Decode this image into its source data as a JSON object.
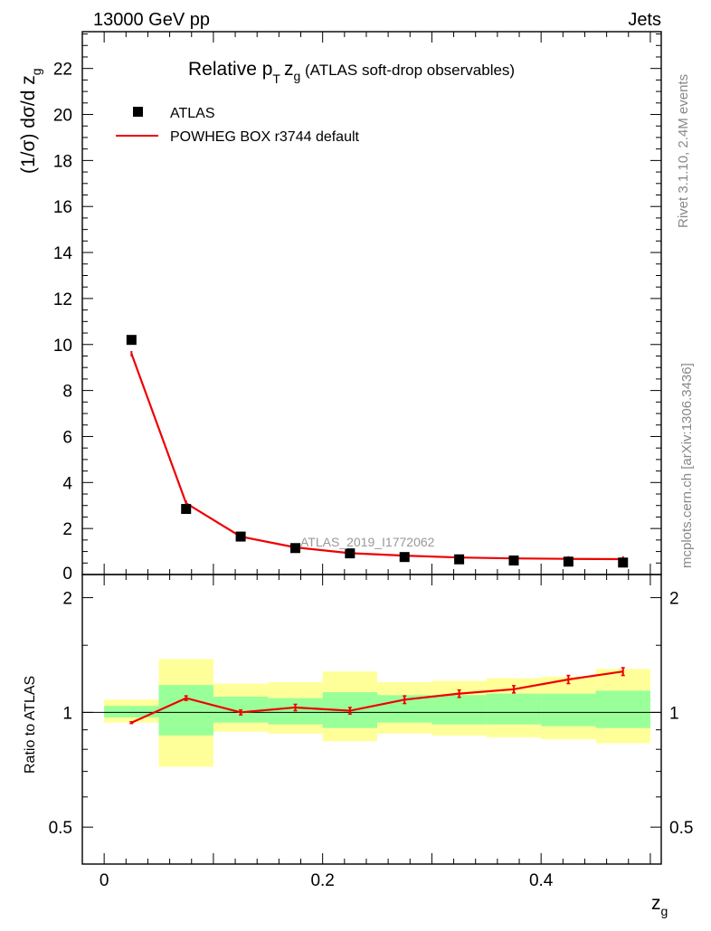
{
  "header": {
    "energy_label": "13000 GeV pp",
    "process_label": "Jets",
    "rivet_label": "Rivet 3.1.10,  2.4M events",
    "source_label": "mcplots.cern.ch [arXiv:1306.3436]"
  },
  "chart_data": [
    {
      "type": "scatter",
      "panel": "main",
      "title": "Relative p_T z_g (ATLAS soft-drop observables)",
      "title_parts": {
        "main": "Relative p",
        "sub_T": "T",
        "var": "z",
        "sub_g": "g",
        "rest": " (ATLAS soft-drop observables)"
      },
      "ylabel": "(1/σ) dσ/d z_g",
      "ylabel_parts": {
        "prefix": "(1/σ) dσ/d z",
        "sub": "g"
      },
      "analysis_label": "ATLAS_2019_I1772062",
      "xlim": [
        -0.02,
        0.51
      ],
      "ylim": [
        0,
        23.6
      ],
      "yticks": [
        2,
        4,
        6,
        8,
        10,
        12,
        14,
        16,
        18,
        20,
        22
      ],
      "ytick_zero_label": "0",
      "x": [
        0.025,
        0.075,
        0.125,
        0.175,
        0.225,
        0.275,
        0.325,
        0.375,
        0.425,
        0.475
      ],
      "series": [
        {
          "name": "ATLAS",
          "kind": "points",
          "color": "#000000",
          "values": [
            10.2,
            2.85,
            1.65,
            1.15,
            0.92,
            0.76,
            0.66,
            0.61,
            0.56,
            0.52
          ]
        },
        {
          "name": "POWHEG BOX r3744 default",
          "kind": "line",
          "color": "#ee0000",
          "values": [
            9.6,
            3.1,
            1.65,
            1.18,
            0.93,
            0.82,
            0.74,
            0.7,
            0.68,
            0.67
          ]
        }
      ],
      "legend": [
        "ATLAS",
        "POWHEG BOX r3744 default"
      ],
      "legend_position": "top-left"
    },
    {
      "type": "line",
      "panel": "ratio",
      "ylabel": "Ratio to ATLAS",
      "xlabel": "z_g",
      "xlabel_parts": {
        "var": "z",
        "sub": "g"
      },
      "xlim": [
        -0.02,
        0.51
      ],
      "ylim": [
        0.4,
        2.3
      ],
      "yticks_labeled": [
        0.5,
        1,
        2
      ],
      "ytick_labels": [
        "0.5",
        "1",
        "2"
      ],
      "xticks_labeled": [
        0,
        0.2,
        0.4
      ],
      "xtick_labels": [
        "0",
        "0.2",
        "0.4"
      ],
      "reference": 1.0,
      "bins": [
        0.0,
        0.05,
        0.1,
        0.15,
        0.2,
        0.25,
        0.3,
        0.35,
        0.4,
        0.45,
        0.5
      ],
      "band_outer": {
        "color": "#ffff99",
        "lo": [
          0.94,
          0.72,
          0.89,
          0.88,
          0.84,
          0.88,
          0.87,
          0.86,
          0.85,
          0.83
        ],
        "hi": [
          1.08,
          1.38,
          1.19,
          1.2,
          1.28,
          1.2,
          1.21,
          1.23,
          1.24,
          1.3
        ]
      },
      "band_inner": {
        "color": "#99ff99",
        "lo": [
          0.97,
          0.87,
          0.94,
          0.93,
          0.91,
          0.94,
          0.93,
          0.93,
          0.92,
          0.91
        ],
        "hi": [
          1.04,
          1.18,
          1.1,
          1.09,
          1.13,
          1.11,
          1.11,
          1.12,
          1.12,
          1.14
        ]
      },
      "x": [
        0.025,
        0.075,
        0.125,
        0.175,
        0.225,
        0.275,
        0.325,
        0.375,
        0.425,
        0.475
      ],
      "series": [
        {
          "name": "POWHEG BOX r3744 default / ATLAS",
          "color": "#ee0000",
          "values": [
            0.94,
            1.09,
            1.0,
            1.03,
            1.01,
            1.08,
            1.12,
            1.15,
            1.22,
            1.28
          ],
          "errors": [
            0.005,
            0.015,
            0.015,
            0.02,
            0.02,
            0.025,
            0.025,
            0.025,
            0.03,
            0.03
          ]
        }
      ]
    }
  ]
}
